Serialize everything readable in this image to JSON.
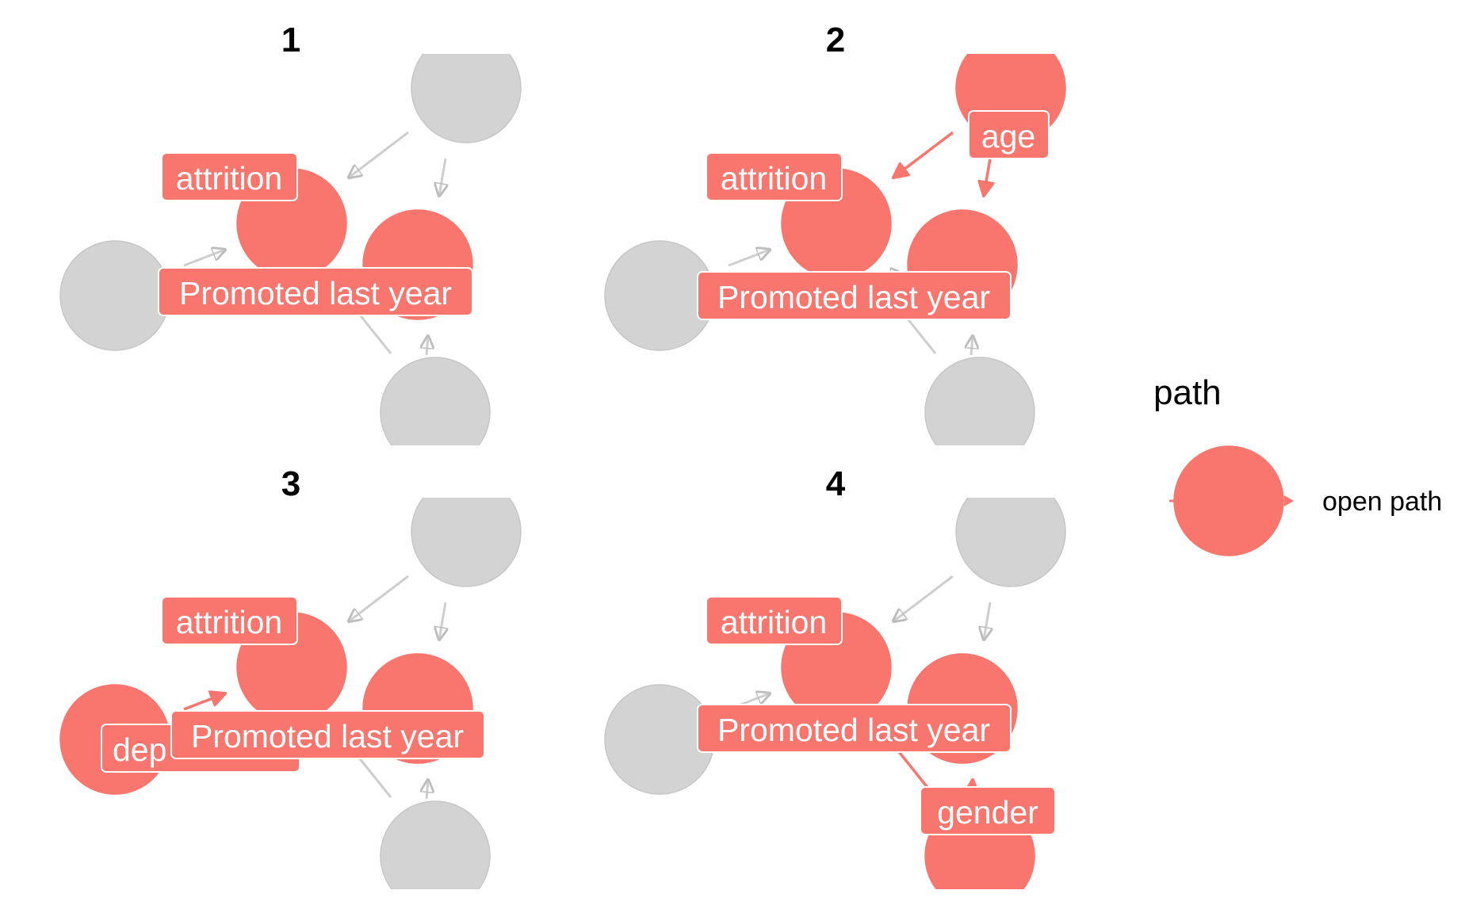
{
  "colors": {
    "open": "#f8766d",
    "closed": "#d3d3d3",
    "closed_edge": "#c6c6c6",
    "background": "#ffffff"
  },
  "nodes": {
    "age": "age",
    "attrition": "attrition",
    "promoted": "Promoted last year",
    "department": "dep",
    "gender": "gender"
  },
  "panels": [
    {
      "title": "1",
      "open_nodes": [
        "attrition",
        "promoted"
      ],
      "open_edges": [],
      "labels": [
        "attrition",
        "promoted"
      ]
    },
    {
      "title": "2",
      "open_nodes": [
        "age",
        "attrition",
        "promoted"
      ],
      "open_edges": [
        "age-attrition",
        "age-promoted"
      ],
      "labels": [
        "age",
        "attrition",
        "promoted"
      ]
    },
    {
      "title": "3",
      "open_nodes": [
        "department",
        "attrition",
        "promoted"
      ],
      "open_edges": [
        "department-attrition",
        "department-promoted"
      ],
      "labels": [
        "department",
        "attrition",
        "promoted"
      ]
    },
    {
      "title": "4",
      "open_nodes": [
        "gender",
        "attrition",
        "promoted"
      ],
      "open_edges": [
        "gender-attrition",
        "gender-promoted"
      ],
      "labels": [
        "attrition",
        "promoted",
        "gender"
      ]
    }
  ],
  "legend": {
    "title": "path",
    "items": [
      {
        "label": "open path",
        "status": "open"
      }
    ]
  }
}
